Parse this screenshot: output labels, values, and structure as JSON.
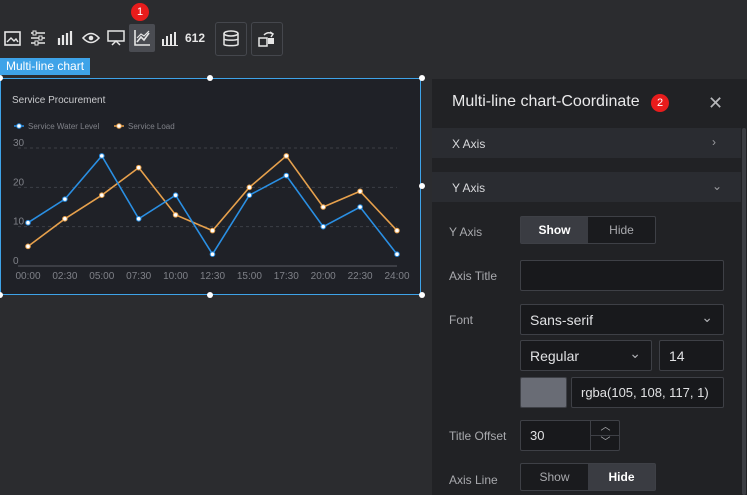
{
  "toolbar": {
    "badge_1": "1",
    "items": [
      "image-icon",
      "sliders-icon",
      "bar-chart-icon",
      "eye-icon",
      "screen-icon",
      "line-chart-icon",
      "column-chart-icon",
      "number-icon",
      "database-icon",
      "transform-icon"
    ],
    "number_label": "612"
  },
  "canvas": {
    "selection_label": "Multi-line chart"
  },
  "chart_data": {
    "type": "line",
    "title": "Service Procurement",
    "categories": [
      "00:00",
      "02:30",
      "05:00",
      "07:30",
      "10:00",
      "12:30",
      "15:00",
      "17:30",
      "20:00",
      "22:30",
      "24:00"
    ],
    "series": [
      {
        "name": "Service Water Level",
        "color": "#2a8fe3",
        "values": [
          11,
          17,
          28,
          12,
          18,
          3,
          18,
          23,
          10,
          15,
          3
        ]
      },
      {
        "name": "Service Load",
        "color": "#e6a04c",
        "values": [
          5,
          12,
          18,
          25,
          13,
          9,
          20,
          28,
          15,
          19,
          9
        ]
      }
    ],
    "ylim": [
      0,
      30
    ],
    "yticks": [
      "0",
      "10",
      "20",
      "30"
    ],
    "grid": true,
    "legend_position": "top-left"
  },
  "panel": {
    "badge_2": "2",
    "title": "Multi-line chart-Coordinate",
    "x_axis_section": "X Axis",
    "y_axis_section": "Y Axis",
    "y_axis": {
      "label": "Y Axis",
      "show": "Show",
      "hide": "Hide",
      "selected": "Show"
    },
    "axis_title": {
      "label": "Axis Title",
      "value": ""
    },
    "font": {
      "label": "Font",
      "family": "Sans-serif",
      "weight": "Regular",
      "size": "14",
      "color_text": "rgba(105, 108, 117, 1)",
      "color_swatch": "#696c75"
    },
    "title_offset": {
      "label": "Title Offset",
      "value": "30"
    },
    "axis_line": {
      "label": "Axis Line",
      "show": "Show",
      "hide": "Hide",
      "selected": "Hide"
    }
  }
}
